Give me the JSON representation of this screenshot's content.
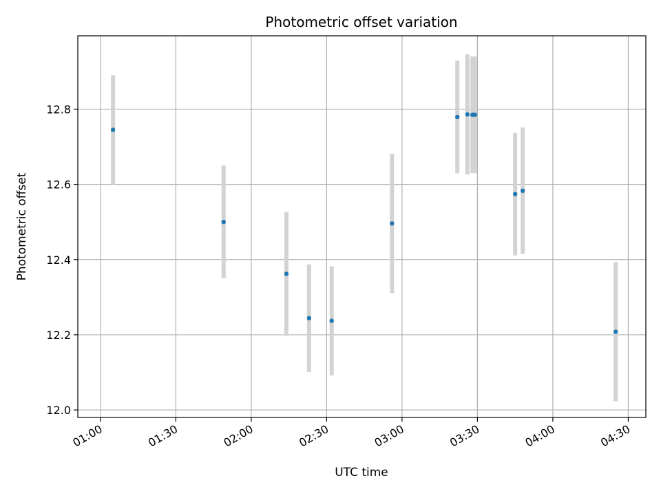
{
  "chart_data": {
    "type": "scatter",
    "title": "Photometric offset variation",
    "xlabel": "UTC time",
    "ylabel": "Photometric offset",
    "xlim": [
      "00:51",
      "04:37"
    ],
    "ylim": [
      11.98,
      12.995
    ],
    "x_ticks": [
      "01:00",
      "01:30",
      "02:00",
      "02:30",
      "03:00",
      "03:30",
      "04:00",
      "04:30"
    ],
    "y_ticks": [
      "12.0",
      "12.2",
      "12.4",
      "12.6",
      "12.8"
    ],
    "grid": true,
    "colors": {
      "point": "#1f77b4",
      "errorbar": "#d3d3d3",
      "grid": "#b0b0b0"
    },
    "series": [
      {
        "points": [
          {
            "x": "01:05",
            "y": 12.745,
            "err": 0.145
          },
          {
            "x": "01:49",
            "y": 12.5,
            "err": 0.15
          },
          {
            "x": "02:14",
            "y": 12.362,
            "err": 0.165
          },
          {
            "x": "02:23",
            "y": 12.244,
            "err": 0.143
          },
          {
            "x": "02:32",
            "y": 12.237,
            "err": 0.145
          },
          {
            "x": "02:56",
            "y": 12.496,
            "err": 0.185
          },
          {
            "x": "03:22",
            "y": 12.779,
            "err": 0.15
          },
          {
            "x": "03:26",
            "y": 12.786,
            "err": 0.16
          },
          {
            "x": "03:28",
            "y": 12.785,
            "err": 0.155
          },
          {
            "x": "03:29",
            "y": 12.785,
            "err": 0.155
          },
          {
            "x": "03:45",
            "y": 12.574,
            "err": 0.163
          },
          {
            "x": "03:48",
            "y": 12.583,
            "err": 0.168
          },
          {
            "x": "04:25",
            "y": 12.208,
            "err": 0.185
          }
        ]
      }
    ]
  }
}
